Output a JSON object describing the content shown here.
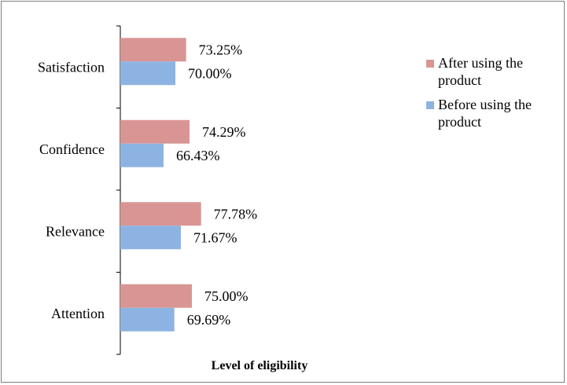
{
  "chart_data": {
    "type": "bar",
    "orientation": "horizontal",
    "categories": [
      "Satisfaction",
      "Confidence",
      "Relevance",
      "Attention"
    ],
    "series": [
      {
        "name": "After using the product",
        "color": "#d99594",
        "values": [
          73.25,
          74.29,
          77.78,
          75.0
        ],
        "labels": [
          "73.25%",
          "74.29%",
          "77.78%",
          "75.00%"
        ]
      },
      {
        "name": "Before using the product",
        "color": "#8db3e2",
        "values": [
          70.0,
          66.43,
          71.67,
          69.69
        ],
        "labels": [
          "70.00%",
          "66.43%",
          "71.67%",
          "69.69%"
        ]
      }
    ],
    "xlabel": "Level of eligibility",
    "xlim": [
      50,
      100
    ],
    "legend": {
      "position": "right",
      "entries": [
        {
          "line1": "After using the",
          "line2": "product"
        },
        {
          "line1": "Before using the",
          "line2": "product"
        }
      ]
    },
    "grid": false
  }
}
